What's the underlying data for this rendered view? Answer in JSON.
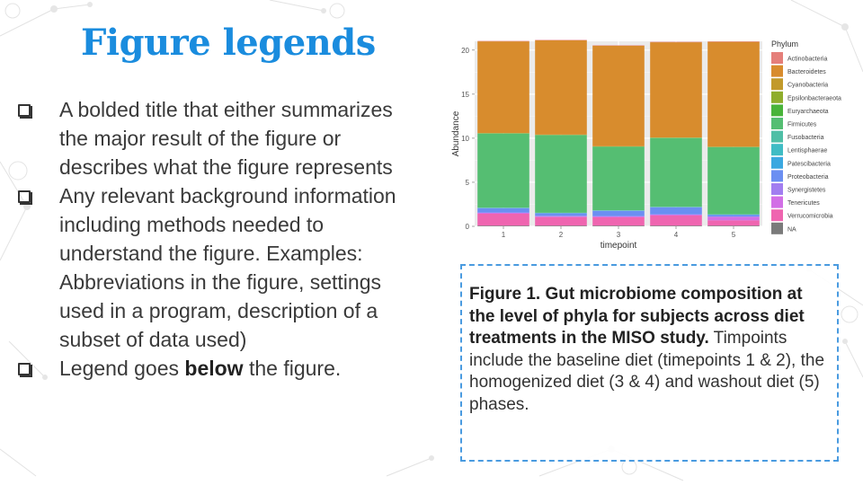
{
  "slide": {
    "title": "Figure legends",
    "bullets": [
      {
        "text": "A bolded title that either summarizes the major result of the figure or describes what the figure represents"
      },
      {
        "text": "Any relevant background information including methods needed to understand the figure. Examples: Abbreviations in the figure, settings used in a program, description of a subset of data used)"
      },
      {
        "pre": "Legend goes ",
        "bold": "below",
        "post": " the figure."
      }
    ]
  },
  "caption": {
    "bold": "Figure 1. Gut microbiome composition at the level of phyla for subjects across diet treatments in the MISO study.",
    "rest": " Timpoints include the baseline diet (timepoints 1 & 2), the homogenized diet (3 & 4) and washout diet (5) phases."
  },
  "chart_data": {
    "type": "bar",
    "stacked": true,
    "xlabel": "timepoint",
    "ylabel": "Abundance",
    "categories": [
      "1",
      "2",
      "3",
      "4",
      "5"
    ],
    "ylim": [
      0,
      21
    ],
    "yticks": [
      0,
      5,
      10,
      15,
      20
    ],
    "grid": true,
    "legend_title": "Phylum",
    "legend_position": "right",
    "series": [
      {
        "name": "Actinobacteria",
        "color": "#e57f7a",
        "values": [
          0.05,
          0.05,
          0.05,
          0.05,
          0.05
        ]
      },
      {
        "name": "Bacteroidetes",
        "color": "#d88c2d",
        "values": [
          10.4,
          10.7,
          11.4,
          10.8,
          11.9
        ]
      },
      {
        "name": "Cyanobacteria",
        "color": "#c29a2b",
        "values": [
          0.02,
          0.02,
          0.02,
          0.02,
          0.02
        ]
      },
      {
        "name": "Epsilonbacteraeota",
        "color": "#8fad2c",
        "values": [
          0.02,
          0.02,
          0.02,
          0.02,
          0.02
        ]
      },
      {
        "name": "Euryarchaeota",
        "color": "#49b43a",
        "values": [
          0.03,
          0.03,
          0.03,
          0.03,
          0.03
        ]
      },
      {
        "name": "Firmicutes",
        "color": "#55be72",
        "values": [
          8.4,
          8.8,
          7.2,
          7.8,
          7.6
        ]
      },
      {
        "name": "Fusobacteria",
        "color": "#4fbfa6",
        "values": [
          0.02,
          0.02,
          0.02,
          0.02,
          0.02
        ]
      },
      {
        "name": "Lentisphaerae",
        "color": "#3fbcc4",
        "values": [
          0.02,
          0.02,
          0.02,
          0.02,
          0.02
        ]
      },
      {
        "name": "Patescibacteria",
        "color": "#3ba8e0",
        "values": [
          0.02,
          0.02,
          0.02,
          0.02,
          0.02
        ]
      },
      {
        "name": "Proteobacteria",
        "color": "#6b8ff2",
        "values": [
          0.5,
          0.3,
          0.6,
          0.8,
          0.2
        ]
      },
      {
        "name": "Synergistetes",
        "color": "#a27ef0",
        "values": [
          0.03,
          0.03,
          0.03,
          0.03,
          0.03
        ]
      },
      {
        "name": "Tenericutes",
        "color": "#d26fe6",
        "values": [
          0.1,
          0.1,
          0.1,
          0.1,
          0.4
        ]
      },
      {
        "name": "Verrucomicrobia",
        "color": "#ef65b0",
        "values": [
          1.35,
          0.97,
          0.95,
          1.15,
          0.6
        ]
      },
      {
        "name": "NA",
        "color": "#7a7a7a",
        "values": [
          0.08,
          0.08,
          0.08,
          0.08,
          0.08
        ]
      }
    ]
  }
}
